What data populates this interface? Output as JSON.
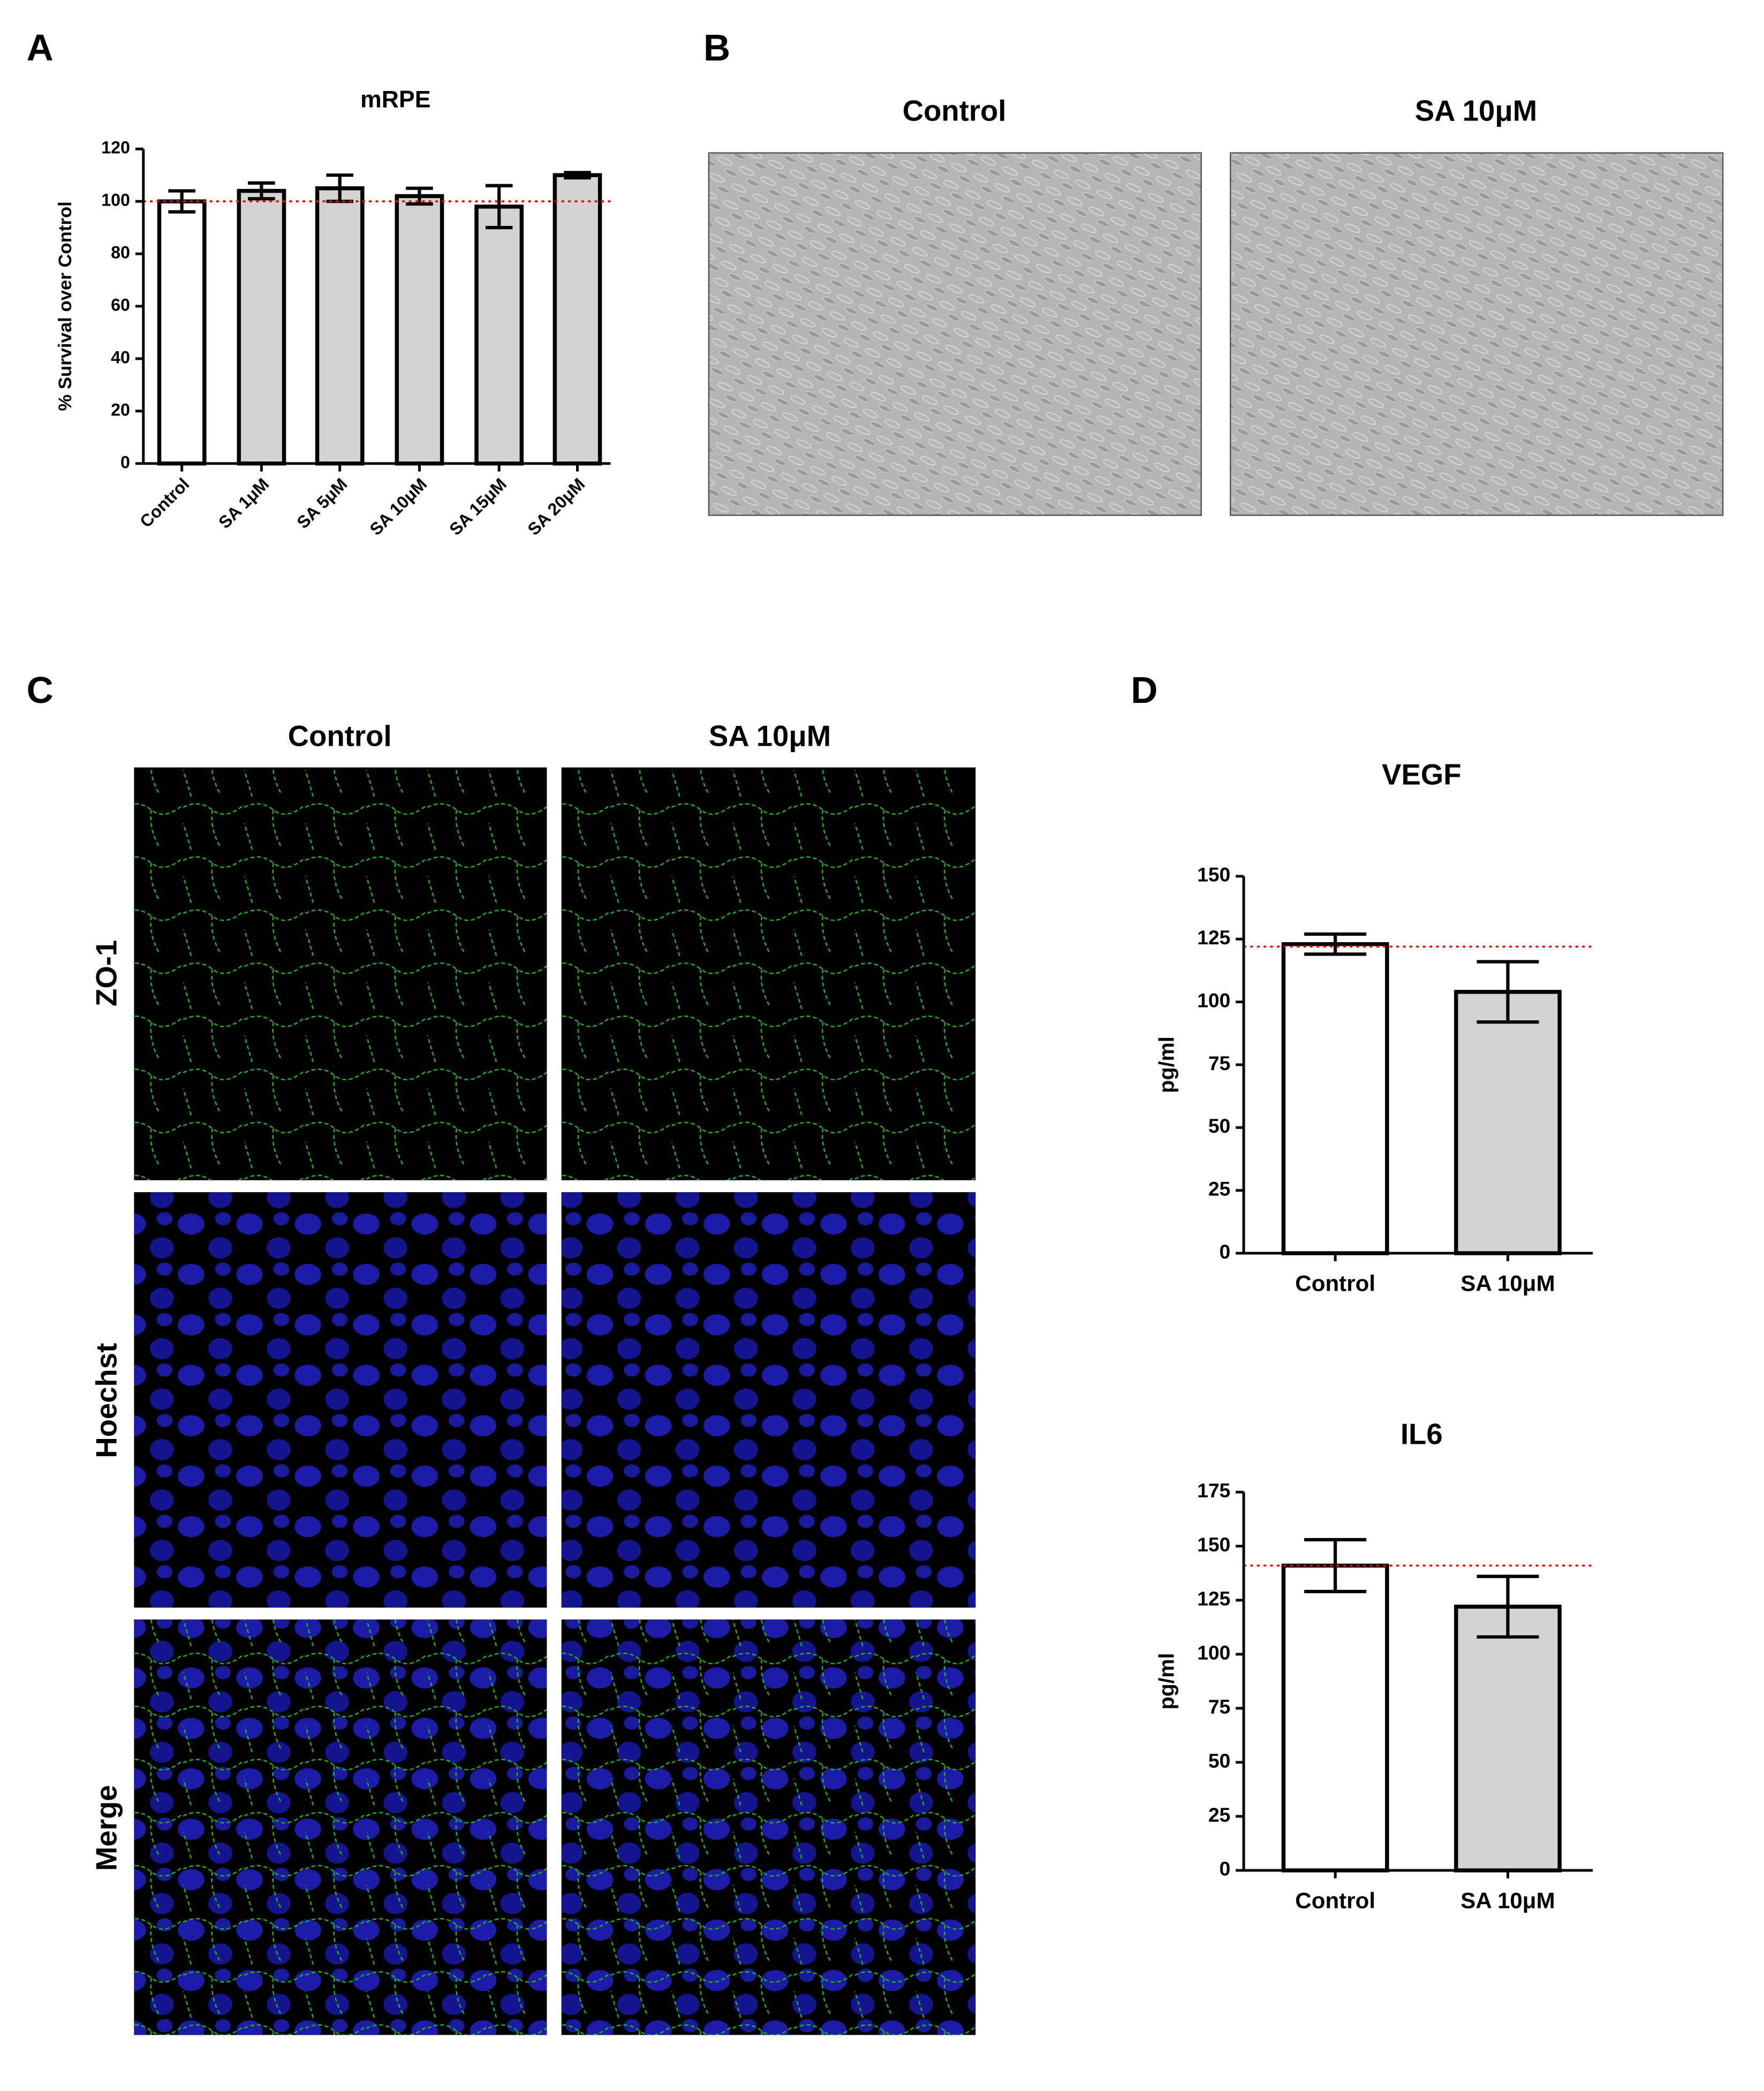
{
  "figure": {
    "panel_labels": [
      "A",
      "B",
      "C",
      "D"
    ],
    "panel_b": {
      "columns": [
        "Control",
        "SA 10μM"
      ]
    },
    "panel_c": {
      "columns": [
        "Control",
        "SA 10μM"
      ],
      "rows": [
        "ZO-1",
        "Hoechst",
        "Merge"
      ]
    }
  },
  "chart_data": [
    {
      "type": "bar",
      "title": "mRPE",
      "y_label": "% Survival over Control",
      "categories": [
        "Control",
        "SA 1μM",
        "SA 5μM",
        "SA 10μM",
        "SA 15μM",
        "SA 20μM"
      ],
      "values": [
        100,
        104,
        105,
        102,
        98,
        110
      ],
      "errors": [
        4,
        3,
        5,
        3,
        8,
        1
      ],
      "colors": [
        "#ffffff",
        "#d3d3d3",
        "#d3d3d3",
        "#d3d3d3",
        "#d3d3d3",
        "#d3d3d3"
      ],
      "ylim": [
        0,
        120
      ],
      "yticks": [
        0,
        20,
        40,
        60,
        80,
        100,
        120
      ],
      "reference_line": 100,
      "reference_color": "#ff0000"
    },
    {
      "type": "bar",
      "title": "VEGF",
      "y_label": "pg/ml",
      "categories": [
        "Control",
        "SA 10μM"
      ],
      "values": [
        123,
        104
      ],
      "errors": [
        4,
        12
      ],
      "colors": [
        "#ffffff",
        "#d3d3d3"
      ],
      "ylim": [
        0,
        150
      ],
      "yticks": [
        0,
        25,
        50,
        75,
        100,
        125,
        150
      ],
      "reference_line": 122,
      "reference_color": "#ff0000"
    },
    {
      "type": "bar",
      "title": "IL6",
      "y_label": "pg/ml",
      "categories": [
        "Control",
        "SA 10μM"
      ],
      "values": [
        141,
        122
      ],
      "errors": [
        12,
        14
      ],
      "colors": [
        "#ffffff",
        "#d3d3d3"
      ],
      "ylim": [
        0,
        175
      ],
      "yticks": [
        0,
        25,
        50,
        75,
        100,
        125,
        150,
        175
      ],
      "reference_line": 141,
      "reference_color": "#ff0000"
    }
  ]
}
